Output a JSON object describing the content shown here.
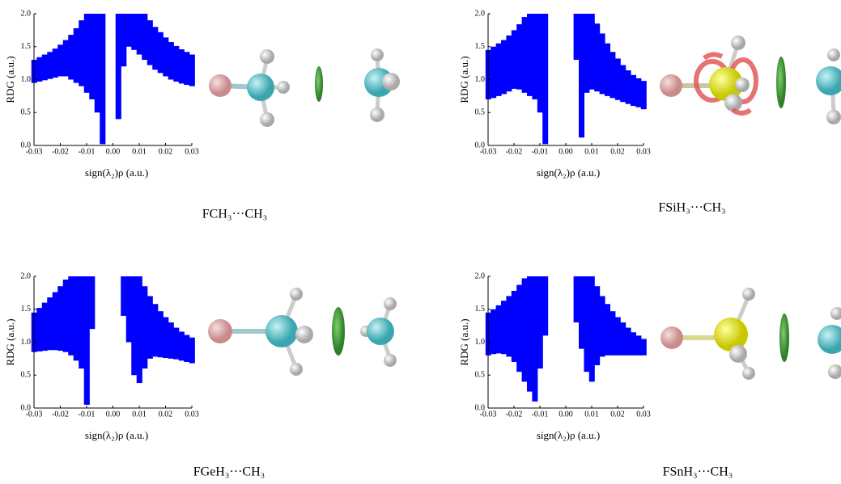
{
  "chart_data": [
    {
      "type": "band",
      "title": "FCH₃···CH₃",
      "x_label": "sign(λ₂)ρ  (a.u.)",
      "y_label": "RDG (a.u.)",
      "color": "#0000ff",
      "xlim": [
        -0.03,
        0.03
      ],
      "xticks": [
        -0.03,
        -0.02,
        -0.01,
        {
          "value": 0,
          "label": "0.00"
        },
        0.01,
        0.02,
        0.03
      ],
      "ylim": [
        0,
        2
      ],
      "yticks": [
        {
          "value": 0,
          "label": "0.0"
        },
        0.5,
        {
          "value": 1,
          "label": "1.0"
        },
        1.5,
        {
          "value": 2,
          "label": "2.0"
        }
      ],
      "bands": [
        {
          "x": [
            -0.03,
            -0.028,
            -0.026,
            -0.024,
            -0.022,
            -0.02,
            -0.018,
            -0.016,
            -0.014,
            -0.012,
            -0.01,
            -0.008,
            -0.006,
            -0.004
          ],
          "upper": [
            1.3,
            1.34,
            1.38,
            1.42,
            1.47,
            1.53,
            1.6,
            1.68,
            1.78,
            1.9,
            2,
            2,
            2,
            2
          ],
          "lower": [
            0.95,
            0.97,
            0.99,
            1.01,
            1.03,
            1.05,
            1.05,
            1.0,
            0.95,
            0.9,
            0.8,
            0.7,
            0.5,
            0.02
          ]
        },
        {
          "x": [
            0.002,
            0.004,
            0.006,
            0.008,
            0.01,
            0.012,
            0.014,
            0.016,
            0.018,
            0.02,
            0.022,
            0.024,
            0.026,
            0.028,
            0.03
          ],
          "upper": [
            2,
            2,
            2,
            2,
            2,
            2,
            1.9,
            1.8,
            1.72,
            1.64,
            1.57,
            1.51,
            1.46,
            1.42,
            1.38
          ],
          "lower": [
            0.4,
            1.2,
            1.5,
            1.45,
            1.38,
            1.3,
            1.22,
            1.15,
            1.1,
            1.05,
            1.0,
            0.97,
            0.94,
            0.92,
            0.9
          ]
        }
      ]
    },
    {
      "type": "band",
      "title": "FSiH₃···CH₃",
      "x_label": "sign(λ₂)ρ (a.u.)",
      "y_label": "RDG (a.u.)",
      "color": "#0000ff",
      "xlim": [
        -0.03,
        0.03
      ],
      "xticks": [
        -0.03,
        -0.02,
        -0.01,
        {
          "value": 0,
          "label": "0.00"
        },
        0.01,
        0.02,
        0.03
      ],
      "ylim": [
        0,
        2
      ],
      "yticks": [
        {
          "value": 0,
          "label": "0.0"
        },
        0.5,
        {
          "value": 1,
          "label": "1.0"
        },
        1.5,
        {
          "value": 2,
          "label": "2.0"
        }
      ],
      "bands": [
        {
          "x": [
            -0.03,
            -0.028,
            -0.026,
            -0.024,
            -0.022,
            -0.02,
            -0.018,
            -0.016,
            -0.014,
            -0.012,
            -0.01,
            -0.008
          ],
          "upper": [
            1.45,
            1.5,
            1.55,
            1.6,
            1.67,
            1.75,
            1.84,
            1.95,
            2,
            2,
            2,
            2
          ],
          "lower": [
            0.7,
            0.72,
            0.75,
            0.78,
            0.82,
            0.86,
            0.85,
            0.8,
            0.75,
            0.7,
            0.5,
            0.02
          ]
        },
        {
          "x": [
            0.004,
            0.006,
            0.008,
            0.01,
            0.012,
            0.014,
            0.016,
            0.018,
            0.02,
            0.022,
            0.024,
            0.026,
            0.028,
            0.03
          ],
          "upper": [
            2,
            2,
            2,
            2,
            1.85,
            1.7,
            1.55,
            1.42,
            1.32,
            1.22,
            1.14,
            1.07,
            1.02,
            0.98
          ],
          "lower": [
            1.3,
            0.12,
            0.8,
            0.85,
            0.82,
            0.78,
            0.75,
            0.72,
            0.69,
            0.66,
            0.63,
            0.6,
            0.58,
            0.55
          ]
        }
      ]
    },
    {
      "type": "band",
      "title": "FGeH₃···CH₃",
      "x_label": "sign(λ₂)ρ (a.u.)",
      "y_label": "RDG (a.u.)",
      "color": "#0000ff",
      "xlim": [
        -0.03,
        0.03
      ],
      "xticks": [
        -0.03,
        -0.02,
        -0.01,
        {
          "value": 0,
          "label": "0.00"
        },
        0.01,
        0.02,
        0.03
      ],
      "ylim": [
        0,
        2
      ],
      "yticks": [
        {
          "value": 0,
          "label": "0.0"
        },
        0.5,
        {
          "value": 1,
          "label": "1.0"
        },
        1.5,
        {
          "value": 2,
          "label": "2.0"
        }
      ],
      "bands": [
        {
          "x": [
            -0.03,
            -0.028,
            -0.026,
            -0.024,
            -0.022,
            -0.02,
            -0.018,
            -0.016,
            -0.014,
            -0.012,
            -0.01,
            -0.008
          ],
          "upper": [
            1.45,
            1.52,
            1.6,
            1.68,
            1.76,
            1.85,
            1.95,
            2,
            2,
            2,
            2,
            2
          ],
          "lower": [
            0.85,
            0.86,
            0.87,
            0.88,
            0.88,
            0.87,
            0.85,
            0.8,
            0.72,
            0.6,
            0.05,
            1.2
          ]
        },
        {
          "x": [
            0.004,
            0.006,
            0.008,
            0.01,
            0.012,
            0.014,
            0.016,
            0.018,
            0.02,
            0.022,
            0.024,
            0.026,
            0.028,
            0.03
          ],
          "upper": [
            2,
            2,
            2,
            2,
            1.85,
            1.7,
            1.58,
            1.47,
            1.38,
            1.3,
            1.22,
            1.16,
            1.11,
            1.07
          ],
          "lower": [
            1.4,
            1.0,
            0.5,
            0.38,
            0.6,
            0.75,
            0.78,
            0.77,
            0.76,
            0.75,
            0.74,
            0.72,
            0.7,
            0.68
          ]
        }
      ]
    },
    {
      "type": "band",
      "title": "FSnH₃···CH₃",
      "x_label": "sign(λ₂)ρ (a.u.)",
      "y_label": "RDG (a.u.)",
      "color": "#0000ff",
      "xlim": [
        -0.03,
        0.03
      ],
      "xticks": [
        -0.03,
        -0.02,
        -0.01,
        {
          "value": 0,
          "label": "0.00"
        },
        0.01,
        0.02,
        0.03
      ],
      "ylim": [
        0,
        2
      ],
      "yticks": [
        {
          "value": 0,
          "label": "0.0"
        },
        0.5,
        {
          "value": 1,
          "label": "1.0"
        },
        1.5,
        {
          "value": 2,
          "label": "2.0"
        }
      ],
      "bands": [
        {
          "x": [
            -0.03,
            -0.028,
            -0.026,
            -0.024,
            -0.022,
            -0.02,
            -0.018,
            -0.016,
            -0.014,
            -0.012,
            -0.01,
            -0.008
          ],
          "upper": [
            1.45,
            1.5,
            1.56,
            1.63,
            1.7,
            1.78,
            1.87,
            1.97,
            2,
            2,
            2,
            2
          ],
          "lower": [
            0.8,
            0.82,
            0.83,
            0.82,
            0.78,
            0.7,
            0.55,
            0.4,
            0.25,
            0.1,
            0.6,
            1.1
          ]
        },
        {
          "x": [
            0.004,
            0.006,
            0.008,
            0.01,
            0.012,
            0.014,
            0.016,
            0.018,
            0.02,
            0.022,
            0.024,
            0.026,
            0.028,
            0.03
          ],
          "upper": [
            2,
            2,
            2,
            2,
            1.85,
            1.7,
            1.58,
            1.47,
            1.38,
            1.3,
            1.22,
            1.15,
            1.1,
            1.05
          ],
          "lower": [
            1.3,
            0.9,
            0.55,
            0.4,
            0.65,
            0.78,
            0.8,
            0.8,
            0.8,
            0.8,
            0.8,
            0.8,
            0.8,
            0.8
          ]
        }
      ]
    }
  ]
}
